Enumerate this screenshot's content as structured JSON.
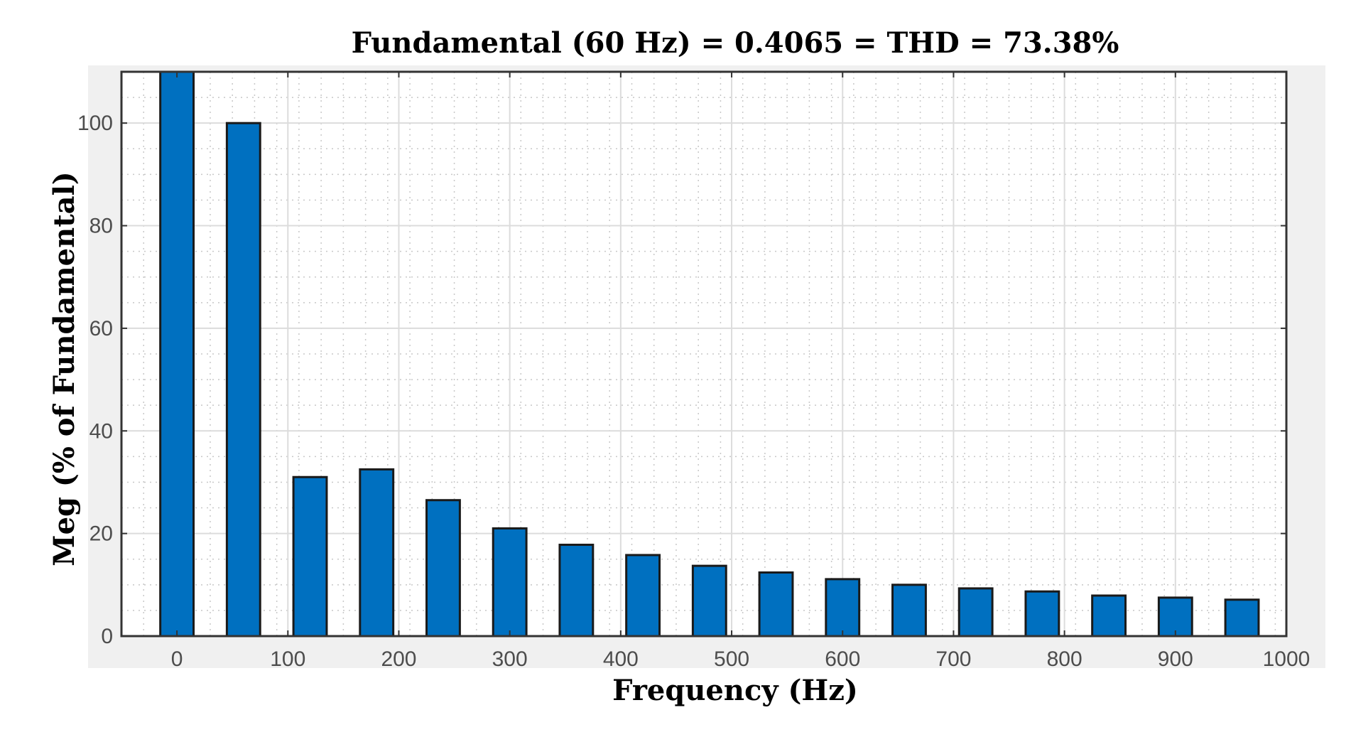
{
  "chart_data": {
    "type": "bar",
    "title": "Fundamental (60 Hz) = 0.4065 = THD = 73.38%",
    "xlabel": "Frequency (Hz)",
    "ylabel": "Meg (% of Fundamental)",
    "xlim": [
      -50,
      1000
    ],
    "ylim": [
      0,
      110
    ],
    "xticks": [
      0,
      100,
      200,
      300,
      400,
      500,
      600,
      700,
      800,
      900,
      1000
    ],
    "yticks": [
      0,
      20,
      40,
      60,
      80,
      100
    ],
    "grid": true,
    "minor_grid": true,
    "bar_color": "#0070c0",
    "x": [
      0,
      60,
      120,
      180,
      240,
      300,
      360,
      420,
      480,
      540,
      600,
      660,
      720,
      780,
      840,
      900,
      960
    ],
    "values": [
      110,
      100,
      31,
      32.5,
      26.5,
      21,
      17.8,
      15.8,
      13.7,
      12.4,
      11.1,
      10,
      9.3,
      8.7,
      7.9,
      7.5,
      7.1
    ],
    "bar_width": 30
  }
}
